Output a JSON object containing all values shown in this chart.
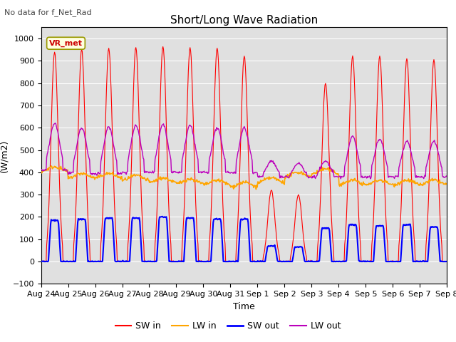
{
  "title": "Short/Long Wave Radiation",
  "subtitle": "No data for f_Net_Rad",
  "xlabel": "Time",
  "ylabel": "(W/m2)",
  "ylim": [
    -100,
    1050
  ],
  "yticks": [
    -100,
    0,
    100,
    200,
    300,
    400,
    500,
    600,
    700,
    800,
    900,
    1000
  ],
  "date_labels": [
    "Aug 24",
    "Aug 25",
    "Aug 26",
    "Aug 27",
    "Aug 28",
    "Aug 29",
    "Aug 30",
    "Aug 31",
    "Sep 1",
    "Sep 2",
    "Sep 3",
    "Sep 4",
    "Sep 5",
    "Sep 6",
    "Sep 7",
    "Sep 8"
  ],
  "legend_label": "VR_met",
  "series_labels": [
    "SW in",
    "LW in",
    "SW out",
    "LW out"
  ],
  "series_colors": [
    "#ff0000",
    "#ffa500",
    "#0000ff",
    "#bb00bb"
  ],
  "n_days": 15,
  "points_per_day": 48,
  "sw_in_peaks": [
    940,
    950,
    955,
    960,
    965,
    960,
    955,
    920,
    320,
    300,
    800,
    920,
    920,
    910,
    905
  ],
  "lw_in_base": [
    400,
    370,
    370,
    360,
    350,
    345,
    340,
    330,
    350,
    375,
    390,
    340,
    340,
    340,
    340
  ],
  "lw_out_base": [
    410,
    395,
    395,
    400,
    400,
    400,
    400,
    400,
    380,
    380,
    380,
    380,
    380,
    380,
    380
  ],
  "lw_out_peaks": [
    620,
    600,
    605,
    610,
    615,
    610,
    600,
    600,
    450,
    440,
    450,
    560,
    550,
    540,
    540
  ],
  "sw_out_peaks": [
    185,
    190,
    195,
    195,
    200,
    195,
    190,
    190,
    70,
    65,
    150,
    165,
    160,
    165,
    155
  ]
}
